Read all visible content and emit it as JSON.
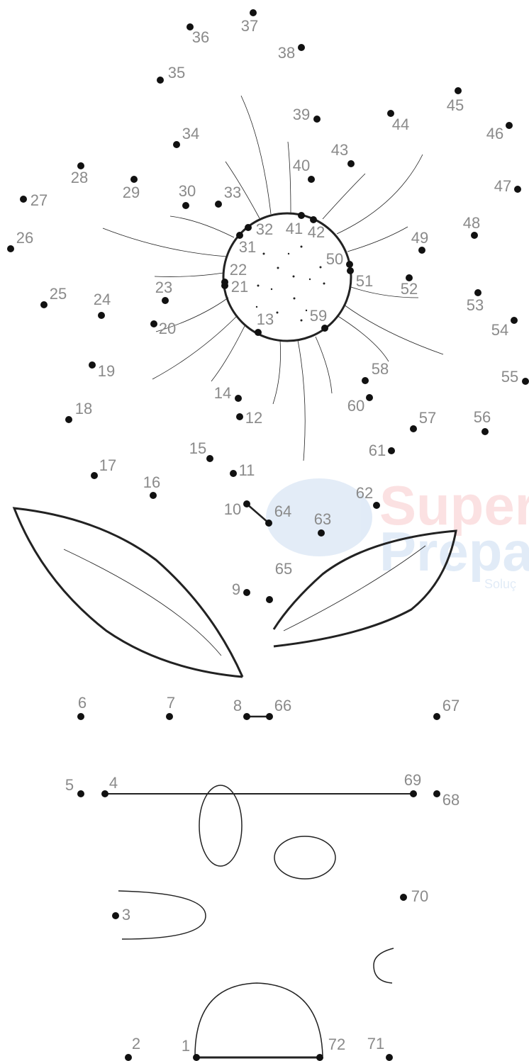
{
  "dots": [
    "1",
    "2",
    "3",
    "4",
    "5",
    "6",
    "7",
    "8",
    "9",
    "10",
    "11",
    "12",
    "13",
    "14",
    "15",
    "16",
    "17",
    "18",
    "19",
    "20",
    "21",
    "22",
    "23",
    "24",
    "25",
    "26",
    "27",
    "28",
    "29",
    "30",
    "31",
    "32",
    "33",
    "34",
    "35",
    "36",
    "37",
    "38",
    "39",
    "40",
    "41",
    "42",
    "43",
    "44",
    "45",
    "46",
    "47",
    "48",
    "49",
    "50",
    "51",
    "52",
    "53",
    "54",
    "55",
    "56",
    "57",
    "58",
    "59",
    "60",
    "61",
    "62",
    "63",
    "64",
    "65",
    "66",
    "67",
    "68",
    "69",
    "70",
    "71",
    "72"
  ],
  "watermark": {
    "line1": "Super",
    "line2": "Prepa",
    "line3": "Soluç"
  }
}
